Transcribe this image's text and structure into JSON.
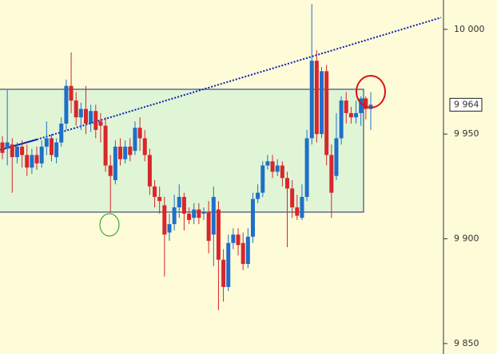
{
  "chart_data": {
    "type": "candlestick",
    "open": [
      9946,
      9943,
      9945,
      9939,
      9944,
      9940,
      9934,
      9940,
      9936,
      9944,
      9948,
      9939,
      9946,
      9955,
      9973,
      9966,
      9958,
      9962,
      9955,
      9961,
      9956,
      9954,
      9935,
      9928,
      9944,
      9938,
      9944,
      9942,
      9953,
      9948,
      9940,
      9925,
      9920,
      9916,
      9903,
      9907,
      9915,
      9920,
      9912,
      9910,
      9914,
      9912,
      9913,
      9902,
      9914,
      9890,
      9877,
      9898,
      9902,
      9898,
      9888,
      9901,
      9919,
      9922,
      9935,
      9937,
      9932,
      9935,
      9929,
      9924,
      9915,
      9910,
      9920,
      9948,
      9985,
      9950,
      9980,
      9940,
      9930,
      9948,
      9966,
      9960,
      9958,
      9960,
      9967,
      9962
    ],
    "high": [
      9949,
      9971,
      9948,
      9946,
      9947,
      9945,
      9943,
      9944,
      9947,
      9956,
      9950,
      9948,
      9958,
      9976,
      9989,
      9970,
      9965,
      9973,
      9964,
      9964,
      9960,
      9958,
      9940,
      9947,
      9948,
      9947,
      9948,
      9956,
      9958,
      9952,
      9943,
      9928,
      9925,
      9920,
      9912,
      9921,
      9926,
      9922,
      9915,
      9917,
      9917,
      9915,
      9918,
      9925,
      9918,
      9895,
      9902,
      9905,
      9905,
      9903,
      9905,
      9922,
      9926,
      9937,
      9940,
      9940,
      9938,
      9937,
      9932,
      9928,
      9921,
      9926,
      9952,
      10012,
      9990,
      9982,
      9983,
      9945,
      9960,
      9968,
      9970,
      9963,
      9966,
      9968,
      9968,
      9970
    ],
    "low": [
      9938,
      9935,
      9922,
      9936,
      9934,
      9930,
      9931,
      9933,
      9934,
      9940,
      9937,
      9936,
      9944,
      9952,
      9960,
      9954,
      9952,
      9950,
      9951,
      9948,
      9946,
      9932,
      9913,
      9926,
      9935,
      9936,
      9937,
      9940,
      9942,
      9937,
      9921,
      9915,
      9912,
      9882,
      9899,
      9904,
      9910,
      9904,
      9907,
      9907,
      9907,
      9909,
      9893,
      9887,
      9866,
      9870,
      9875,
      9895,
      9892,
      9885,
      9886,
      9898,
      9917,
      9920,
      9933,
      9929,
      9930,
      9925,
      9896,
      9910,
      9909,
      9909,
      9918,
      9945,
      9946,
      9948,
      9935,
      9910,
      9928,
      9945,
      9955,
      9955,
      9955,
      9954,
      9957,
      9952
    ],
    "close": [
      9941,
      9946,
      9939,
      9944,
      9940,
      9934,
      9940,
      9936,
      9944,
      9948,
      9940,
      9946,
      9955,
      9973,
      9966,
      9958,
      9962,
      9955,
      9961,
      9952,
      9954,
      9935,
      9930,
      9944,
      9938,
      9944,
      9940,
      9953,
      9948,
      9940,
      9925,
      9920,
      9918,
      9902,
      9907,
      9915,
      9920,
      9912,
      9909,
      9914,
      9910,
      9913,
      9899,
      9920,
      9890,
      9877,
      9898,
      9902,
      9897,
      9888,
      9901,
      9919,
      9922,
      9935,
      9937,
      9932,
      9935,
      9929,
      9924,
      9915,
      9911,
      9920,
      9948,
      9985,
      9950,
      9980,
      9940,
      9922,
      9948,
      9966,
      9960,
      9958,
      9960,
      9967,
      9962,
      9964
    ],
    "up_color": "#1f6fc8",
    "down_color": "#d8262c",
    "ylim": [
      9845,
      10014
    ],
    "yticks": [
      {
        "value": 10000,
        "label": "10 000"
      },
      {
        "value": 9950,
        "label": "9 950"
      },
      {
        "value": 9900,
        "label": "9 900"
      },
      {
        "value": 9850,
        "label": "9 850"
      }
    ],
    "last_price": {
      "value": 9964,
      "label": "9 964"
    }
  }
}
